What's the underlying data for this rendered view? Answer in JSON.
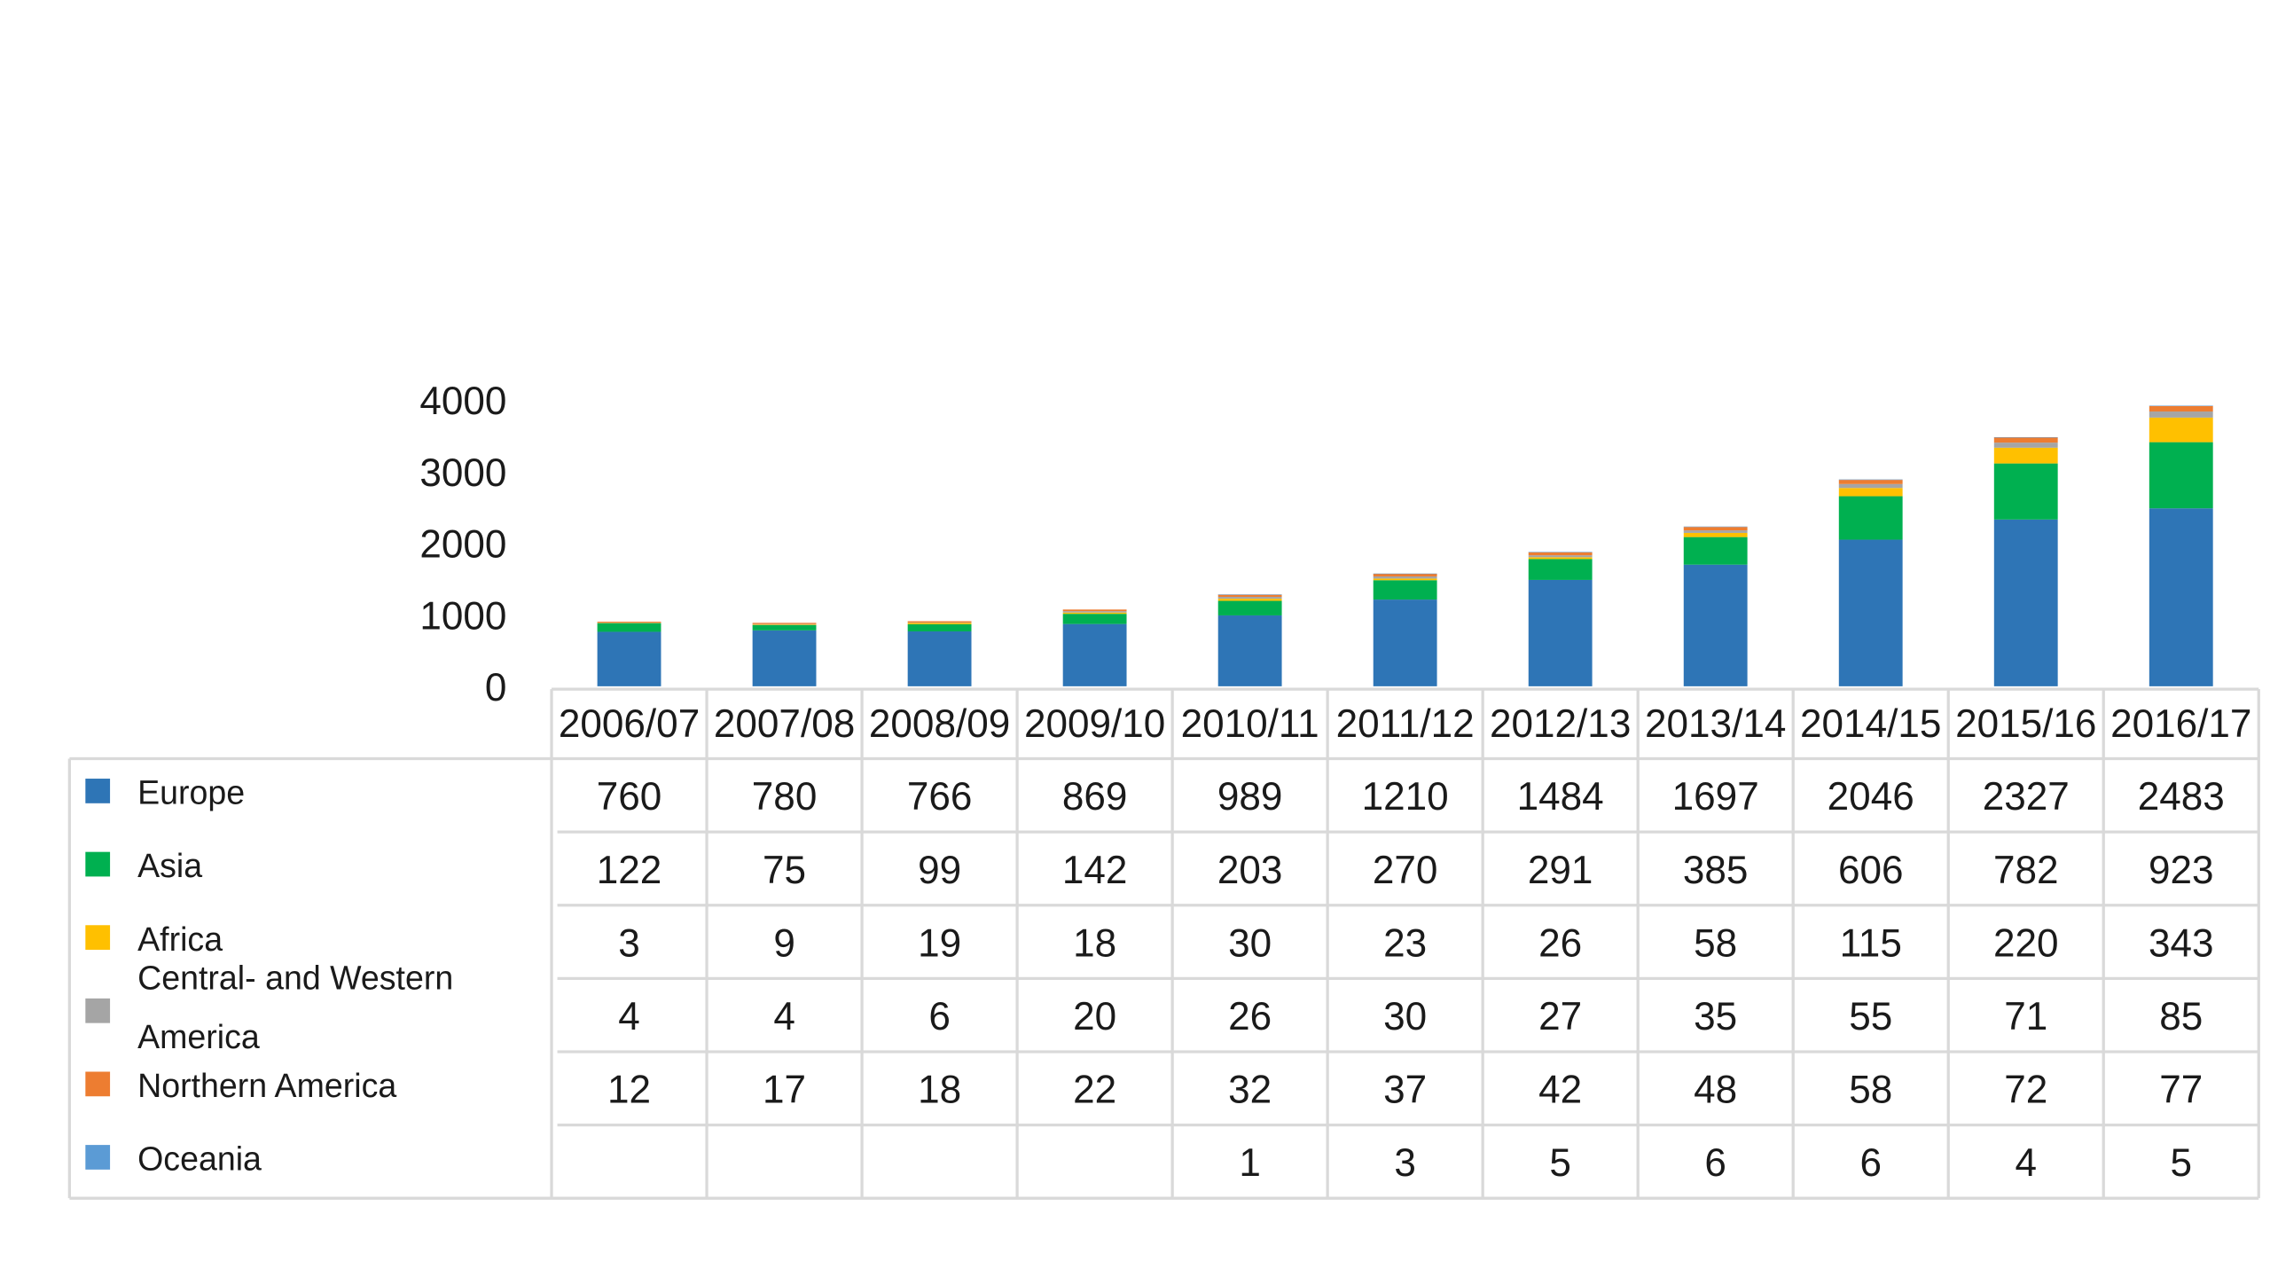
{
  "chart_data": {
    "type": "bar",
    "stacked": true,
    "categories": [
      "2006/07",
      "2007/08",
      "2008/09",
      "2009/10",
      "2010/11",
      "2011/12",
      "2012/13",
      "2013/14",
      "2014/15",
      "2015/16",
      "2016/17"
    ],
    "series": [
      {
        "name": "Europe",
        "color": "#2E75B6",
        "values": [
          760,
          780,
          766,
          869,
          989,
          1210,
          1484,
          1697,
          2046,
          2327,
          2483
        ]
      },
      {
        "name": "Asia",
        "color": "#00B050",
        "values": [
          122,
          75,
          99,
          142,
          203,
          270,
          291,
          385,
          606,
          782,
          923
        ]
      },
      {
        "name": "Africa",
        "color": "#FFC000",
        "values": [
          3,
          9,
          19,
          18,
          30,
          23,
          26,
          58,
          115,
          220,
          343
        ]
      },
      {
        "name": "Central- and Western America",
        "legend_lines": [
          "Central- and Western",
          "America"
        ],
        "color": "#A5A5A5",
        "values": [
          4,
          4,
          6,
          20,
          26,
          30,
          27,
          35,
          55,
          71,
          85
        ]
      },
      {
        "name": "Northern America",
        "color": "#ED7D31",
        "values": [
          12,
          17,
          18,
          22,
          32,
          37,
          42,
          48,
          58,
          72,
          77
        ]
      },
      {
        "name": "Oceania",
        "color": "#5B9BD5",
        "values": [
          null,
          null,
          null,
          null,
          1,
          3,
          5,
          6,
          6,
          4,
          5
        ]
      }
    ],
    "ylim": [
      0,
      4000
    ],
    "yticks": [
      0,
      1000,
      2000,
      3000,
      4000
    ],
    "grid": false,
    "legend": "table"
  }
}
